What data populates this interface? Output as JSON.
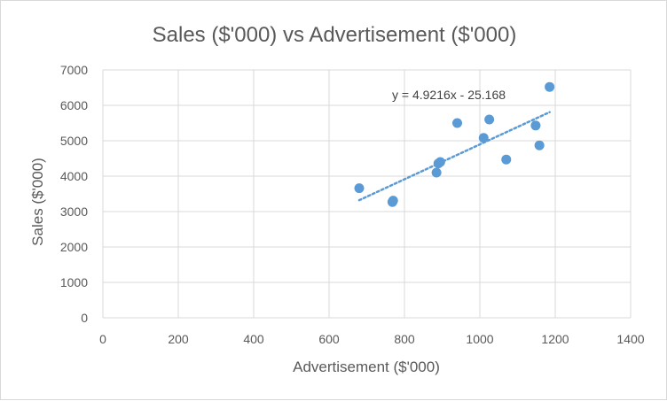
{
  "chart_data": {
    "type": "scatter",
    "title": "Sales ($'000) vs Advertisement  ($'000)",
    "xlabel": "Advertisement ($'000)",
    "ylabel": "Sales ($'000)",
    "xlim": [
      0,
      1400
    ],
    "ylim": [
      0,
      7000
    ],
    "x_ticks": [
      0,
      200,
      400,
      600,
      800,
      1000,
      1200,
      1400
    ],
    "y_ticks": [
      0,
      1000,
      2000,
      3000,
      4000,
      5000,
      6000,
      7000
    ],
    "grid": true,
    "marker_color": "#5b9bd5",
    "trendline": {
      "type": "linear",
      "style": "dotted",
      "color": "#5b9bd5",
      "slope": 4.9216,
      "intercept": -25.168,
      "equation_label": "y = 4.9216x - 25.168",
      "x_range": [
        680,
        1185
      ]
    },
    "points": [
      {
        "x": 680,
        "y": 3660
      },
      {
        "x": 768,
        "y": 3270
      },
      {
        "x": 770,
        "y": 3310
      },
      {
        "x": 885,
        "y": 4100
      },
      {
        "x": 890,
        "y": 4360
      },
      {
        "x": 895,
        "y": 4400
      },
      {
        "x": 940,
        "y": 5500
      },
      {
        "x": 1010,
        "y": 5080
      },
      {
        "x": 1025,
        "y": 5600
      },
      {
        "x": 1070,
        "y": 4470
      },
      {
        "x": 1148,
        "y": 5430
      },
      {
        "x": 1158,
        "y": 4870
      },
      {
        "x": 1185,
        "y": 6520
      }
    ]
  }
}
